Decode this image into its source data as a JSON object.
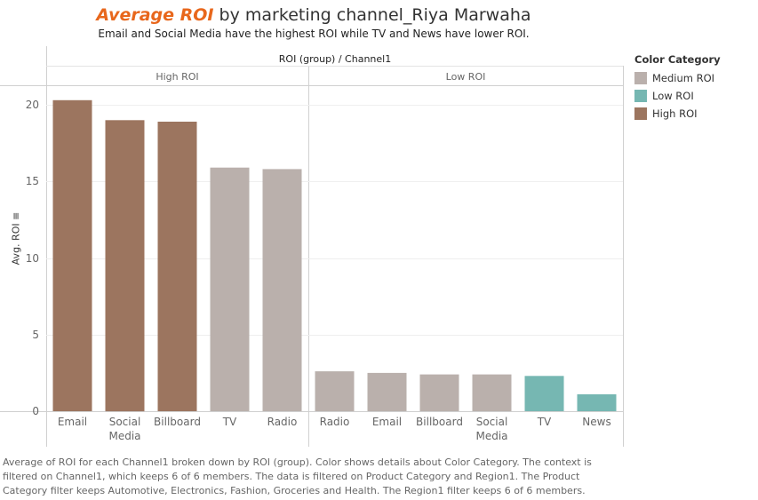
{
  "title": {
    "accent": "Average ROI",
    "rest": " by marketing channel_Riya Marwaha"
  },
  "subtitle": "Email and Social Media have the highest ROI while TV and News have lower ROI.",
  "header_title": "ROI (group) / Channel1",
  "legend": {
    "title": "Color Category",
    "items": [
      {
        "label": "Medium ROI",
        "color": "#bab0ac"
      },
      {
        "label": "Low ROI",
        "color": "#76b7b2"
      },
      {
        "label": "High ROI",
        "color": "#9c755f"
      }
    ]
  },
  "footnote": "Average of ROI for each Channel1 broken down by ROI (group).  Color shows details about Color Category. The context is filtered on Channel1, which keeps 6 of 6 members. The data is filtered on Product Category and Region1. The Product Category filter keeps Automotive, Electronics, Fashion, Groceries and Health. The Region1 filter keeps 6 of 6 members.",
  "chart_data": {
    "type": "bar",
    "title": "Average ROI  by marketing channel_Riya Marwaha",
    "subtitle": "Email and Social Media have the highest ROI while TV and News have lower ROI.",
    "ylabel": "Avg. ROI",
    "ylim": [
      0,
      21
    ],
    "yticks": [
      0,
      5,
      10,
      15,
      20
    ],
    "grid": true,
    "legend_position": "right",
    "groups": [
      {
        "name": "High ROI",
        "categories": [
          "Email",
          "Social Media",
          "Billboard",
          "TV",
          "Radio"
        ],
        "values": [
          20.3,
          19.0,
          18.9,
          15.9,
          15.8
        ],
        "color_category": [
          "High ROI",
          "High ROI",
          "High ROI",
          "Medium ROI",
          "Medium ROI"
        ]
      },
      {
        "name": "Low ROI",
        "categories": [
          "Radio",
          "Email",
          "Billboard",
          "Social Media",
          "TV",
          "News"
        ],
        "values": [
          2.6,
          2.5,
          2.4,
          2.4,
          2.3,
          1.1
        ],
        "color_category": [
          "Medium ROI",
          "Medium ROI",
          "Medium ROI",
          "Medium ROI",
          "Low ROI",
          "Low ROI"
        ]
      }
    ]
  }
}
